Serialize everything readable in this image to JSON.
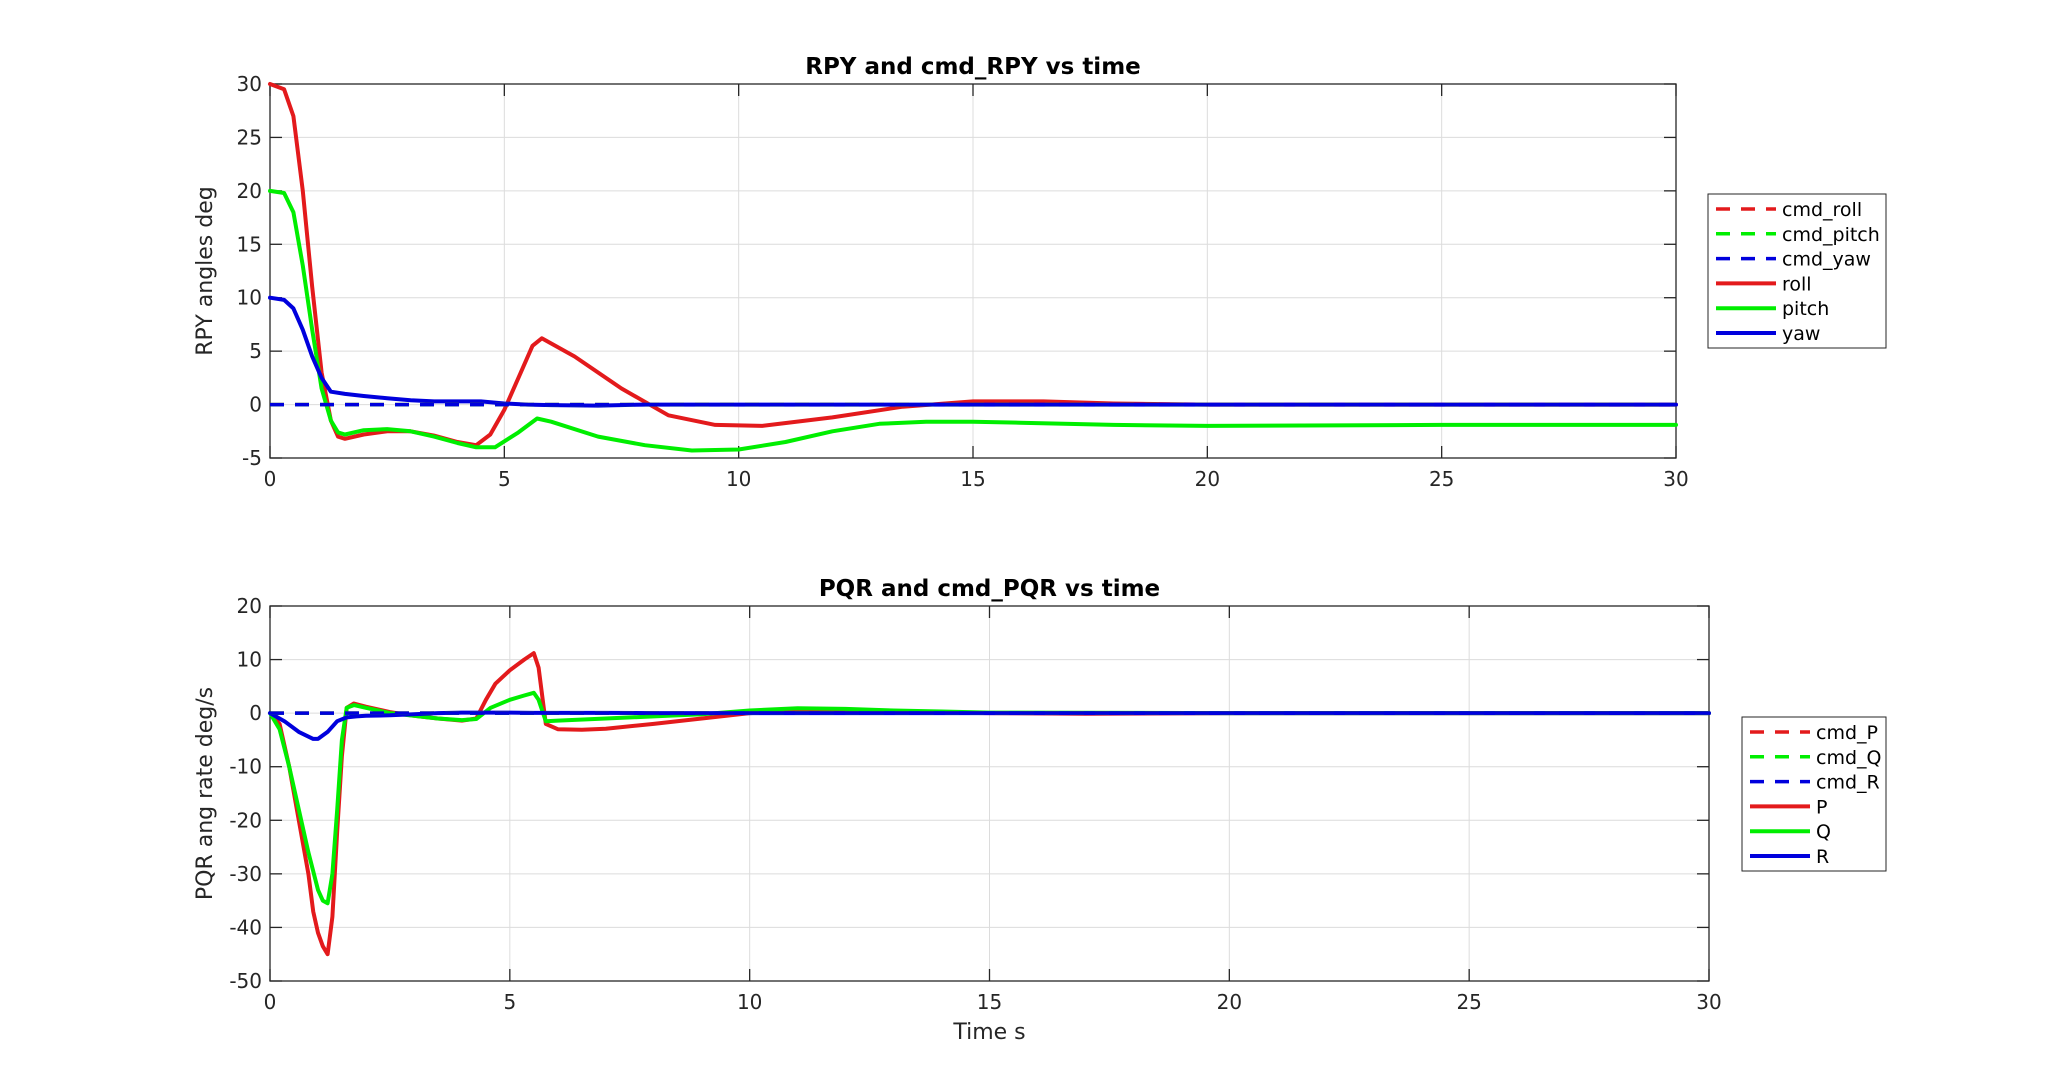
{
  "chart_data": [
    {
      "type": "line",
      "title": "RPY and cmd_RPY vs time",
      "xlabel": "",
      "ylabel": "RPY angles deg",
      "xlim": [
        0,
        30
      ],
      "ylim": [
        -5,
        30
      ],
      "xticks": [
        0,
        5,
        10,
        15,
        20,
        25,
        30
      ],
      "yticks": [
        -5,
        0,
        5,
        10,
        15,
        20,
        25,
        30
      ],
      "grid": true,
      "legend_position": "outside-right",
      "series": [
        {
          "name": "cmd_roll",
          "color": "#e31a1c",
          "style": "dashed",
          "x": [
            0,
            30
          ],
          "y": [
            0,
            0
          ]
        },
        {
          "name": "cmd_pitch",
          "color": "#00ee00",
          "style": "dashed",
          "x": [
            0,
            30
          ],
          "y": [
            0,
            0
          ]
        },
        {
          "name": "cmd_yaw",
          "color": "#0000dd",
          "style": "dashed",
          "x": [
            0,
            30
          ],
          "y": [
            0,
            0
          ]
        },
        {
          "name": "roll",
          "color": "#e31a1c",
          "style": "solid",
          "x": [
            0,
            0.3,
            0.5,
            0.7,
            0.9,
            1.1,
            1.3,
            1.45,
            1.6,
            2.0,
            2.5,
            3.0,
            3.5,
            4.0,
            4.4,
            4.7,
            5.0,
            5.3,
            5.6,
            5.8,
            6.5,
            7.5,
            8.5,
            9.5,
            10.5,
            12,
            13.5,
            15,
            16.5,
            18,
            20,
            25,
            30
          ],
          "y": [
            30,
            29.5,
            27,
            20,
            11,
            3,
            -1.5,
            -3.0,
            -3.2,
            -2.8,
            -2.5,
            -2.5,
            -2.9,
            -3.5,
            -3.8,
            -2.8,
            -0.5,
            2.5,
            5.5,
            6.2,
            4.5,
            1.5,
            -1.0,
            -1.9,
            -2.0,
            -1.2,
            -0.2,
            0.3,
            0.3,
            0.1,
            0.0,
            0.0,
            0.0
          ]
        },
        {
          "name": "pitch",
          "color": "#00ee00",
          "style": "solid",
          "x": [
            0,
            0.3,
            0.5,
            0.7,
            0.9,
            1.1,
            1.3,
            1.45,
            1.6,
            2.0,
            2.5,
            3.0,
            3.5,
            4.0,
            4.4,
            4.8,
            5.3,
            5.7,
            6.0,
            7.0,
            8.0,
            9.0,
            10.0,
            11.0,
            12.0,
            13.0,
            14.0,
            15.0,
            16.0,
            18.0,
            20.0,
            25.0,
            30.0
          ],
          "y": [
            20,
            19.8,
            18,
            13,
            7,
            1.5,
            -1.5,
            -2.6,
            -2.8,
            -2.4,
            -2.3,
            -2.5,
            -3.0,
            -3.6,
            -4.0,
            -4.0,
            -2.6,
            -1.3,
            -1.6,
            -3.0,
            -3.8,
            -4.3,
            -4.2,
            -3.5,
            -2.5,
            -1.8,
            -1.6,
            -1.6,
            -1.7,
            -1.9,
            -2.0,
            -1.9,
            -1.9
          ]
        },
        {
          "name": "yaw",
          "color": "#0000dd",
          "style": "solid",
          "x": [
            0,
            0.3,
            0.5,
            0.7,
            0.9,
            1.1,
            1.3,
            1.6,
            2.0,
            2.5,
            3.0,
            3.5,
            4.0,
            4.5,
            5.0,
            5.5,
            6.0,
            7.0,
            8.0,
            10.0,
            15.0,
            20.0,
            30.0
          ],
          "y": [
            10,
            9.8,
            9,
            7,
            4.5,
            2.5,
            1.2,
            1.0,
            0.8,
            0.6,
            0.4,
            0.3,
            0.3,
            0.3,
            0.1,
            0.0,
            -0.05,
            -0.1,
            0.0,
            0.0,
            0.0,
            0.0,
            0.0
          ]
        }
      ]
    },
    {
      "type": "line",
      "title": "PQR and cmd_PQR vs time",
      "xlabel": "Time s",
      "ylabel": "PQR ang rate deg/s",
      "xlim": [
        0,
        30
      ],
      "ylim": [
        -50,
        20
      ],
      "xticks": [
        0,
        5,
        10,
        15,
        20,
        25,
        30
      ],
      "yticks": [
        -50,
        -40,
        -30,
        -20,
        -10,
        0,
        10,
        20
      ],
      "grid": true,
      "legend_position": "outside-right",
      "series": [
        {
          "name": "cmd_P",
          "color": "#e31a1c",
          "style": "dashed",
          "x": [
            0,
            30
          ],
          "y": [
            0,
            0
          ]
        },
        {
          "name": "cmd_Q",
          "color": "#00ee00",
          "style": "dashed",
          "x": [
            0,
            30
          ],
          "y": [
            0,
            0
          ]
        },
        {
          "name": "cmd_R",
          "color": "#0000dd",
          "style": "dashed",
          "x": [
            0,
            30
          ],
          "y": [
            0,
            0
          ]
        },
        {
          "name": "P",
          "color": "#e31a1c",
          "style": "solid",
          "x": [
            0,
            0.2,
            0.4,
            0.6,
            0.8,
            0.9,
            1.0,
            1.1,
            1.2,
            1.3,
            1.4,
            1.5,
            1.6,
            1.75,
            2.0,
            2.5,
            3.0,
            3.5,
            4.0,
            4.3,
            4.5,
            4.7,
            5.0,
            5.3,
            5.5,
            5.6,
            5.75,
            6.0,
            6.5,
            7.0,
            8.0,
            9.0,
            10.0,
            11.0,
            12.0,
            13.0,
            14.0,
            15.0,
            17.0,
            20.0,
            30.0
          ],
          "y": [
            0,
            -2,
            -10,
            -20,
            -30,
            -37,
            -41,
            -43.5,
            -45,
            -38,
            -22,
            -8,
            1.0,
            1.8,
            1.2,
            0.2,
            -0.5,
            -1.0,
            -1.4,
            -1.0,
            2.5,
            5.5,
            8.0,
            10.0,
            11.2,
            8.5,
            -2.0,
            -3.0,
            -3.1,
            -2.9,
            -2.0,
            -1.0,
            0.0,
            0.3,
            0.4,
            0.3,
            0.1,
            0.0,
            -0.1,
            0.0,
            0.0
          ]
        },
        {
          "name": "Q",
          "color": "#00ee00",
          "style": "solid",
          "x": [
            0,
            0.2,
            0.4,
            0.6,
            0.8,
            1.0,
            1.1,
            1.2,
            1.3,
            1.4,
            1.5,
            1.6,
            1.75,
            2.0,
            2.5,
            3.0,
            3.5,
            4.0,
            4.3,
            4.6,
            5.0,
            5.3,
            5.5,
            5.6,
            5.75,
            6.0,
            7.0,
            8.0,
            9.0,
            10.0,
            11.0,
            12.0,
            13.0,
            14.0,
            15.0,
            20.0,
            30.0
          ],
          "y": [
            0,
            -3,
            -10,
            -18,
            -26,
            -33,
            -35,
            -35.5,
            -30,
            -18,
            -5,
            1.0,
            1.5,
            1.0,
            0.0,
            -0.5,
            -1.0,
            -1.3,
            -1.1,
            1.0,
            2.5,
            3.3,
            3.8,
            2.5,
            -1.5,
            -1.4,
            -1.0,
            -0.6,
            -0.2,
            0.5,
            0.9,
            0.8,
            0.5,
            0.3,
            0.1,
            0.0,
            0.0
          ]
        },
        {
          "name": "R",
          "color": "#0000dd",
          "style": "solid",
          "x": [
            0,
            0.3,
            0.6,
            0.9,
            1.0,
            1.2,
            1.4,
            1.6,
            1.8,
            2.0,
            2.5,
            3.0,
            3.5,
            4.0,
            4.5,
            5.0,
            5.5,
            6.0,
            7.0,
            8.0,
            10.0,
            15.0,
            20.0,
            30.0
          ],
          "y": [
            0,
            -1.5,
            -3.5,
            -4.8,
            -4.8,
            -3.5,
            -1.5,
            -0.8,
            -0.6,
            -0.5,
            -0.4,
            -0.2,
            0.0,
            0.1,
            0.1,
            0.1,
            0.05,
            0.05,
            0.05,
            0.0,
            0.0,
            0.0,
            0.0,
            0.0
          ]
        }
      ]
    }
  ]
}
